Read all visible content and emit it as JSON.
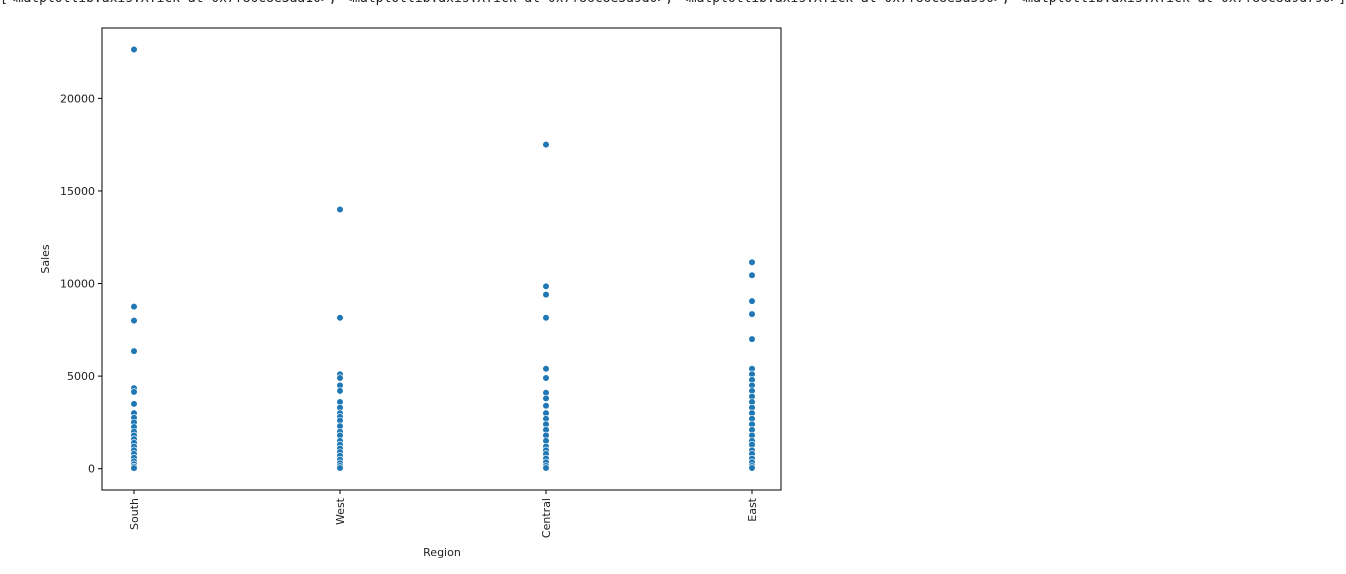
{
  "header_text": "[<matplotlib.axis.XTick at 0x7f86c8e3aa10>, <matplotlib.axis.XTick at 0x7f86c8e3a9d0>, <matplotlib.axis.XTick at 0x7f86c8e3a590>, <matplotlib.axis.XTick at 0x7f86c8d9d790>]",
  "chart_data": {
    "type": "scatter",
    "xlabel": "Region",
    "ylabel": "Sales",
    "categories": [
      "South",
      "West",
      "Central",
      "East"
    ],
    "yticks": [
      0,
      5000,
      10000,
      15000,
      20000
    ],
    "ylim": [
      -1150,
      23800
    ],
    "grid": false,
    "marker_color": "#1f77b4",
    "points": [
      {
        "x": "South",
        "y": 22640
      },
      {
        "x": "South",
        "y": 8750
      },
      {
        "x": "South",
        "y": 8000
      },
      {
        "x": "South",
        "y": 6350
      },
      {
        "x": "South",
        "y": 4350
      },
      {
        "x": "South",
        "y": 4150
      },
      {
        "x": "South",
        "y": 3500
      },
      {
        "x": "South",
        "y": 3000
      },
      {
        "x": "South",
        "y": 2750
      },
      {
        "x": "South",
        "y": 2500
      },
      {
        "x": "South",
        "y": 2250
      },
      {
        "x": "South",
        "y": 2000
      },
      {
        "x": "South",
        "y": 1800
      },
      {
        "x": "South",
        "y": 1600
      },
      {
        "x": "South",
        "y": 1400
      },
      {
        "x": "South",
        "y": 1200
      },
      {
        "x": "South",
        "y": 1000
      },
      {
        "x": "South",
        "y": 800
      },
      {
        "x": "South",
        "y": 600
      },
      {
        "x": "South",
        "y": 400
      },
      {
        "x": "South",
        "y": 250
      },
      {
        "x": "South",
        "y": 120
      },
      {
        "x": "South",
        "y": 30
      },
      {
        "x": "West",
        "y": 14000
      },
      {
        "x": "West",
        "y": 8150
      },
      {
        "x": "West",
        "y": 5100
      },
      {
        "x": "West",
        "y": 4900
      },
      {
        "x": "West",
        "y": 4500
      },
      {
        "x": "West",
        "y": 4200
      },
      {
        "x": "West",
        "y": 3600
      },
      {
        "x": "West",
        "y": 3300
      },
      {
        "x": "West",
        "y": 3000
      },
      {
        "x": "West",
        "y": 2800
      },
      {
        "x": "West",
        "y": 2600
      },
      {
        "x": "West",
        "y": 2300
      },
      {
        "x": "West",
        "y": 2000
      },
      {
        "x": "West",
        "y": 1800
      },
      {
        "x": "West",
        "y": 1500
      },
      {
        "x": "West",
        "y": 1300
      },
      {
        "x": "West",
        "y": 1100
      },
      {
        "x": "West",
        "y": 900
      },
      {
        "x": "West",
        "y": 700
      },
      {
        "x": "West",
        "y": 500
      },
      {
        "x": "West",
        "y": 300
      },
      {
        "x": "West",
        "y": 150
      },
      {
        "x": "West",
        "y": 40
      },
      {
        "x": "Central",
        "y": 17500
      },
      {
        "x": "Central",
        "y": 9850
      },
      {
        "x": "Central",
        "y": 9400
      },
      {
        "x": "Central",
        "y": 8150
      },
      {
        "x": "Central",
        "y": 5400
      },
      {
        "x": "Central",
        "y": 4900
      },
      {
        "x": "Central",
        "y": 4100
      },
      {
        "x": "Central",
        "y": 3800
      },
      {
        "x": "Central",
        "y": 3400
      },
      {
        "x": "Central",
        "y": 3000
      },
      {
        "x": "Central",
        "y": 2700
      },
      {
        "x": "Central",
        "y": 2400
      },
      {
        "x": "Central",
        "y": 2100
      },
      {
        "x": "Central",
        "y": 1800
      },
      {
        "x": "Central",
        "y": 1500
      },
      {
        "x": "Central",
        "y": 1200
      },
      {
        "x": "Central",
        "y": 1000
      },
      {
        "x": "Central",
        "y": 800
      },
      {
        "x": "Central",
        "y": 550
      },
      {
        "x": "Central",
        "y": 350
      },
      {
        "x": "Central",
        "y": 150
      },
      {
        "x": "Central",
        "y": 40
      },
      {
        "x": "East",
        "y": 11150
      },
      {
        "x": "East",
        "y": 10450
      },
      {
        "x": "East",
        "y": 9050
      },
      {
        "x": "East",
        "y": 8350
      },
      {
        "x": "East",
        "y": 7000
      },
      {
        "x": "East",
        "y": 5400
      },
      {
        "x": "East",
        "y": 5100
      },
      {
        "x": "East",
        "y": 4800
      },
      {
        "x": "East",
        "y": 4500
      },
      {
        "x": "East",
        "y": 4200
      },
      {
        "x": "East",
        "y": 3900
      },
      {
        "x": "East",
        "y": 3600
      },
      {
        "x": "East",
        "y": 3300
      },
      {
        "x": "East",
        "y": 3000
      },
      {
        "x": "East",
        "y": 2700
      },
      {
        "x": "East",
        "y": 2400
      },
      {
        "x": "East",
        "y": 2100
      },
      {
        "x": "East",
        "y": 1800
      },
      {
        "x": "East",
        "y": 1500
      },
      {
        "x": "East",
        "y": 1300
      },
      {
        "x": "East",
        "y": 1000
      },
      {
        "x": "East",
        "y": 800
      },
      {
        "x": "East",
        "y": 550
      },
      {
        "x": "East",
        "y": 350
      },
      {
        "x": "East",
        "y": 150
      },
      {
        "x": "East",
        "y": 40
      }
    ]
  }
}
